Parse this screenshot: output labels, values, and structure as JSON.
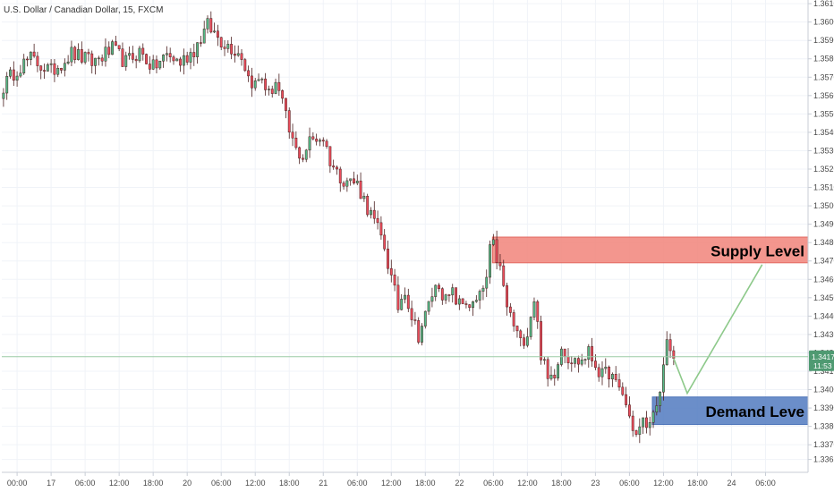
{
  "chart_data": {
    "type": "candlestick",
    "title": "U.S. Dollar / Canadian Dollar, 15, FXCM",
    "ylim": [
      1.3355,
      1.3612
    ],
    "y_ticks": [
      "1.33620",
      "1.33700",
      "1.33800",
      "1.33900",
      "1.34000",
      "1.34100",
      "1.34200",
      "1.34300",
      "1.34400",
      "1.34500",
      "1.34600",
      "1.34700",
      "1.34800",
      "1.34900",
      "1.35000",
      "1.35100",
      "1.35200",
      "1.35300",
      "1.35400",
      "1.35500",
      "1.35600",
      "1.35700",
      "1.35800",
      "1.35900",
      "1.36000",
      "1.36100"
    ],
    "x_ticks": [
      "00:00",
      "17",
      "06:00",
      "12:00",
      "18:00",
      "20",
      "06:00",
      "12:00",
      "18:00",
      "21",
      "06:00",
      "12:00",
      "18:00",
      "22",
      "06:00",
      "12:00",
      "18:00",
      "23",
      "06:00",
      "12:00",
      "18:00",
      "24",
      "06:00"
    ],
    "close_path": [
      [
        0,
        1.3565
      ],
      [
        4,
        1.3575
      ],
      [
        8,
        1.358
      ],
      [
        14,
        1.3573
      ],
      [
        20,
        1.3583
      ],
      [
        26,
        1.3578
      ],
      [
        32,
        1.3585
      ],
      [
        36,
        1.3578
      ],
      [
        40,
        1.3584
      ],
      [
        44,
        1.3575
      ],
      [
        48,
        1.3582
      ],
      [
        52,
        1.3578
      ],
      [
        56,
        1.3585
      ],
      [
        60,
        1.3598
      ],
      [
        64,
        1.359
      ],
      [
        68,
        1.3585
      ],
      [
        70,
        1.3582
      ],
      [
        72,
        1.357
      ],
      [
        74,
        1.3566
      ],
      [
        76,
        1.357
      ],
      [
        78,
        1.356
      ],
      [
        80,
        1.3568
      ],
      [
        82,
        1.3555
      ],
      [
        84,
        1.354
      ],
      [
        86,
        1.353
      ],
      [
        88,
        1.3527
      ],
      [
        90,
        1.3535
      ],
      [
        92,
        1.3537
      ],
      [
        94,
        1.3537
      ],
      [
        96,
        1.3525
      ],
      [
        98,
        1.3518
      ],
      [
        100,
        1.3515
      ],
      [
        104,
        1.3512
      ],
      [
        108,
        1.3495
      ],
      [
        110,
        1.3487
      ],
      [
        112,
        1.3478
      ],
      [
        114,
        1.346
      ],
      [
        116,
        1.3445
      ],
      [
        118,
        1.3455
      ],
      [
        120,
        1.344
      ],
      [
        122,
        1.343
      ],
      [
        124,
        1.344
      ],
      [
        126,
        1.3452
      ],
      [
        128,
        1.3458
      ],
      [
        130,
        1.3448
      ],
      [
        132,
        1.3452
      ],
      [
        134,
        1.3446
      ],
      [
        136,
        1.3448
      ],
      [
        138,
        1.3445
      ],
      [
        140,
        1.345
      ],
      [
        142,
        1.346
      ],
      [
        143,
        1.3475
      ],
      [
        144,
        1.3478
      ],
      [
        146,
        1.3465
      ],
      [
        148,
        1.3445
      ],
      [
        150,
        1.3435
      ],
      [
        152,
        1.3425
      ],
      [
        154,
        1.3432
      ],
      [
        156,
        1.345
      ],
      [
        158,
        1.342
      ],
      [
        160,
        1.3405
      ],
      [
        162,
        1.341
      ],
      [
        164,
        1.3424
      ],
      [
        166,
        1.3418
      ],
      [
        168,
        1.3415
      ],
      [
        170,
        1.3416
      ],
      [
        172,
        1.342
      ],
      [
        174,
        1.3414
      ],
      [
        176,
        1.3407
      ],
      [
        178,
        1.341
      ],
      [
        180,
        1.3402
      ],
      [
        182,
        1.3398
      ],
      [
        184,
        1.3385
      ],
      [
        186,
        1.3375
      ],
      [
        188,
        1.3382
      ],
      [
        190,
        1.338
      ],
      [
        191,
        1.3392
      ],
      [
        192,
        1.3388
      ],
      [
        193,
        1.3396
      ],
      [
        194,
        1.341
      ],
      [
        195,
        1.3428
      ],
      [
        196,
        1.342
      ],
      [
        197,
        1.3417
      ]
    ],
    "current_price": "1.34179",
    "countdown": "11:53",
    "supply_zone": {
      "label": "Supply Level",
      "high": 1.3483,
      "low": 1.3469,
      "start_x": 144
    },
    "demand_zone": {
      "label": "Demand Leve",
      "high": 1.3396,
      "low": 1.3381,
      "start_x": 191
    },
    "projection": [
      [
        197,
        1.3417
      ],
      [
        201,
        1.3398
      ],
      [
        223,
        1.3468
      ]
    ],
    "colors": {
      "up": "#53b987",
      "down": "#eb4d5c",
      "candle_border": "#4a1f1f",
      "supply_fill": "#f28b82",
      "supply_stroke": "#e05a52",
      "demand_fill": "#5b82c4",
      "demand_stroke": "#3b66b3",
      "projection": "#8dc98a",
      "price_line": "#9ccba6",
      "price_tag": "#4f9a72",
      "grid": "#f0f3f8",
      "axis": "#c8cdd6",
      "text": "#4a4a4a"
    }
  }
}
